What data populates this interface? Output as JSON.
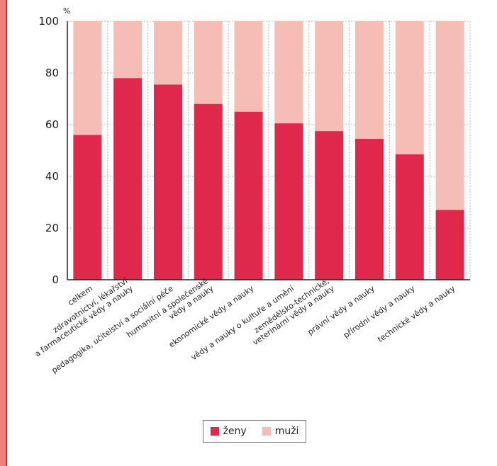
{
  "colors": {
    "zeny": "#e0294a",
    "muzi": "#f6bdb4",
    "grid": "#b8b8b8",
    "axis": "#222222"
  },
  "chart_data": {
    "type": "bar",
    "stacked": true,
    "unit": "%",
    "ylim": [
      0,
      100
    ],
    "yticks": [
      0,
      20,
      40,
      60,
      80,
      100
    ],
    "grid": true,
    "legend_position": "bottom",
    "categories": [
      [
        "celkem"
      ],
      [
        "zdravotnictví, lékařství",
        "a farmaceutické vědy a nauky"
      ],
      [
        "pedagogika, učitelství a sociální péče"
      ],
      [
        "humanitní a společenské",
        "vědy a nauky"
      ],
      [
        "ekonomické vědy a nauky"
      ],
      [
        "vědy a nauky o kultuře a umění"
      ],
      [
        "zemědělsko-technické,",
        "veterinární vědy a nauky"
      ],
      [
        "právní vědy a nauky"
      ],
      [
        "přírodní vědy a nauky"
      ],
      [
        "technické vědy a nauky"
      ]
    ],
    "series": [
      {
        "name": "ženy",
        "values": [
          56,
          78,
          75.5,
          68,
          65,
          60.5,
          57.5,
          54.5,
          48.5,
          27
        ]
      },
      {
        "name": "muži",
        "values": [
          44,
          22,
          24.5,
          32,
          35,
          39.5,
          42.5,
          45.5,
          51.5,
          73
        ]
      }
    ]
  }
}
